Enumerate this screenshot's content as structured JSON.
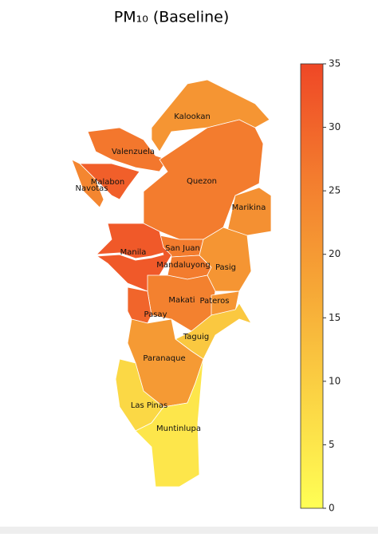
{
  "title": "PM₁₀ (Baseline)",
  "regions": [
    {
      "name": "Kalookan",
      "value": 21
    },
    {
      "name": "Valenzuela",
      "value": 27
    },
    {
      "name": "Malabon",
      "value": 31
    },
    {
      "name": "Navotas",
      "value": 24
    },
    {
      "name": "Quezon",
      "value": 26
    },
    {
      "name": "Marikina",
      "value": 22
    },
    {
      "name": "San Juan",
      "value": 26
    },
    {
      "name": "Manila",
      "value": 32
    },
    {
      "name": "Mandaluyong",
      "value": 26
    },
    {
      "name": "Pasig",
      "value": 21
    },
    {
      "name": "Makati",
      "value": 25
    },
    {
      "name": "Pateros",
      "value": 21
    },
    {
      "name": "Pasay",
      "value": 30
    },
    {
      "name": "Taguig",
      "value": 11
    },
    {
      "name": "Paranaque",
      "value": 20
    },
    {
      "name": "Las Pinas",
      "value": 8
    },
    {
      "name": "Muntinlupa",
      "value": 5
    }
  ],
  "colorbar": {
    "lim": [
      0,
      35
    ],
    "ticks": [
      0,
      5,
      10,
      15,
      20,
      25,
      30,
      35
    ],
    "colormap": [
      "#ffff55",
      "#fbd444",
      "#f6a636",
      "#f37b2e",
      "#ef4726"
    ]
  }
}
